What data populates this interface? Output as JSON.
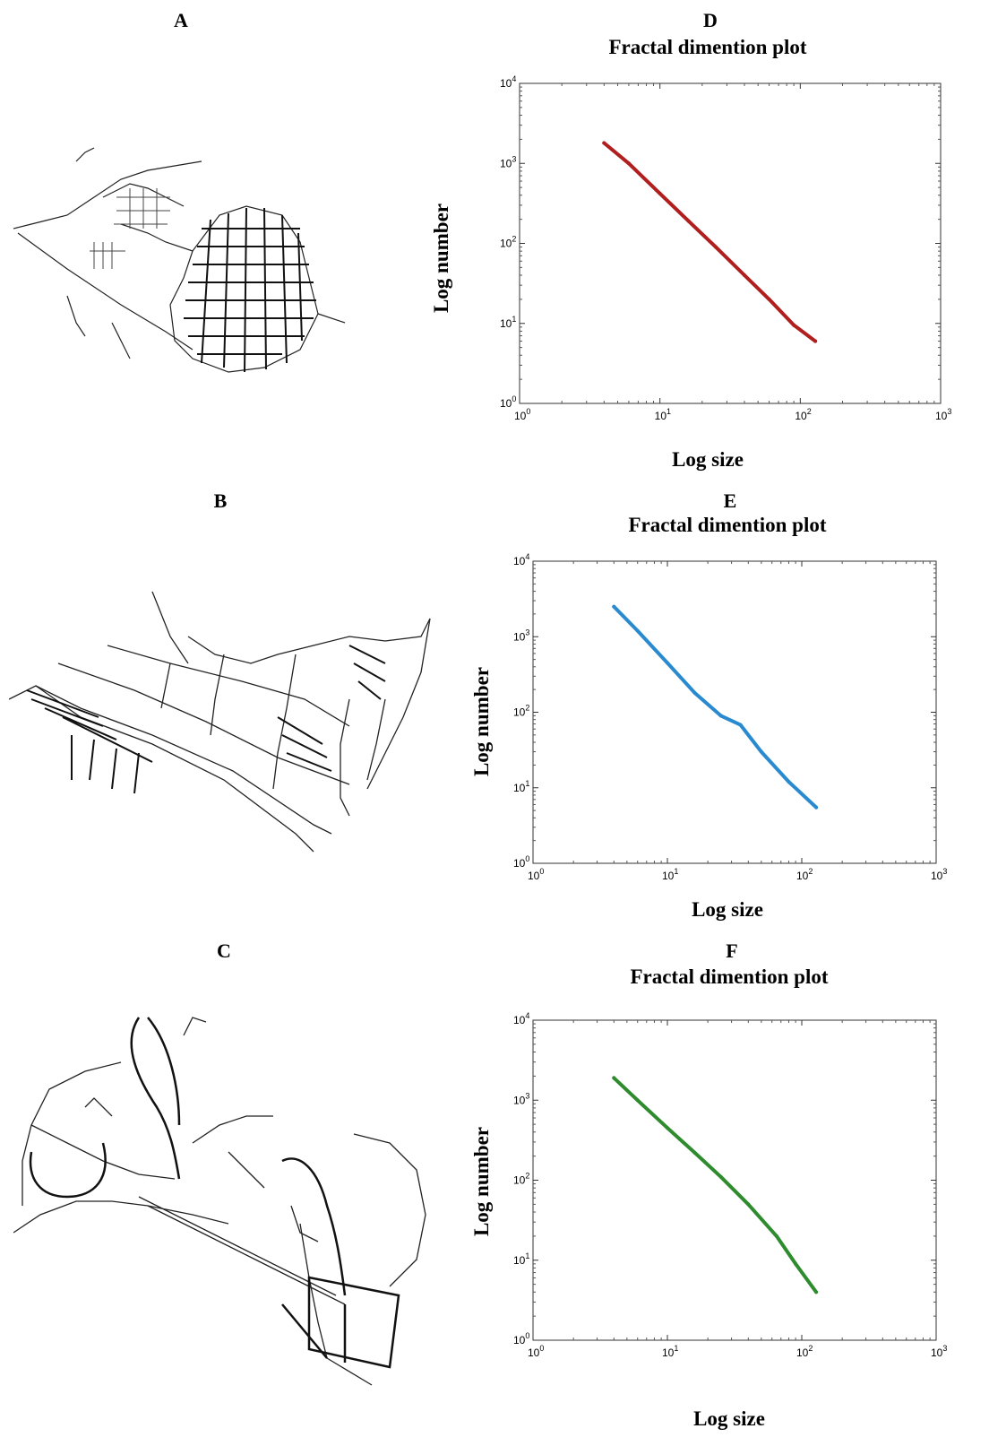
{
  "panels": {
    "a": "A",
    "b": "B",
    "c": "C",
    "d": "D",
    "e": "E",
    "f": "F"
  },
  "chart_data": [
    {
      "panel": "D",
      "type": "line",
      "title": "Fractal dimention plot",
      "xlabel": "Log size",
      "ylabel": "Log number",
      "xscale": "log",
      "yscale": "log",
      "xlim": [
        1,
        1000
      ],
      "ylim": [
        1,
        10000
      ],
      "grid": false,
      "color": "#b01e1e",
      "series": [
        {
          "x": [
            4,
            6,
            10,
            16,
            25,
            40,
            60,
            90,
            128
          ],
          "y": [
            1800,
            1000,
            420,
            190,
            90,
            40,
            20,
            9.5,
            6
          ]
        }
      ]
    },
    {
      "panel": "E",
      "type": "line",
      "title": "Fractal dimention plot",
      "xlabel": "Log size",
      "ylabel": "Log number",
      "xscale": "log",
      "yscale": "log",
      "xlim": [
        1,
        1000
      ],
      "ylim": [
        1,
        10000
      ],
      "grid": false,
      "color": "#2a8ad0",
      "series": [
        {
          "x": [
            4,
            6,
            10,
            16,
            25,
            35,
            50,
            80,
            128
          ],
          "y": [
            2500,
            1200,
            450,
            180,
            90,
            68,
            30,
            12,
            5.5
          ]
        }
      ]
    },
    {
      "panel": "F",
      "type": "line",
      "title": "Fractal dimention plot",
      "xlabel": "Log size",
      "ylabel": "Log number",
      "xscale": "log",
      "yscale": "log",
      "xlim": [
        1,
        1000
      ],
      "ylim": [
        1,
        10000
      ],
      "grid": false,
      "color": "#2e8b2e",
      "series": [
        {
          "x": [
            4,
            6,
            10,
            16,
            25,
            40,
            65,
            90,
            128
          ],
          "y": [
            1900,
            1000,
            450,
            220,
            110,
            50,
            20,
            9,
            4
          ]
        }
      ]
    }
  ]
}
